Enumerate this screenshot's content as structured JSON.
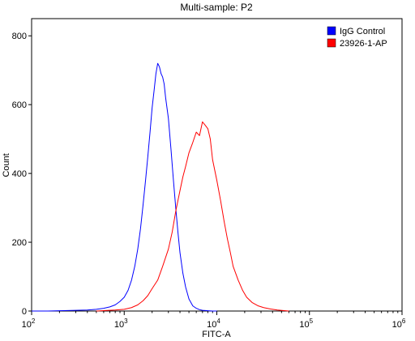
{
  "chart_data": {
    "type": "line",
    "title": "Multi-sample: P2",
    "xlabel": "FITC-A",
    "ylabel": "Count",
    "x_scale": "log10",
    "xlim": [
      100,
      1000000
    ],
    "ylim": [
      0,
      850
    ],
    "x_ticks": [
      {
        "value": 100,
        "base": "10",
        "exp": "2"
      },
      {
        "value": 1000,
        "base": "10",
        "exp": "3"
      },
      {
        "value": 10000,
        "base": "10",
        "exp": "4"
      },
      {
        "value": 100000,
        "base": "10",
        "exp": "5"
      },
      {
        "value": 1000000,
        "base": "10",
        "exp": "6"
      }
    ],
    "y_ticks": [
      "0",
      "200",
      "400",
      "600",
      "800"
    ],
    "grid": false,
    "legend_position": "top-right",
    "series": [
      {
        "name": "IgG Control",
        "color": "#0000ff",
        "x": [
          100,
          150,
          200,
          300,
          400,
          500,
          600,
          700,
          800,
          900,
          1000,
          1100,
          1200,
          1300,
          1400,
          1500,
          1600,
          1700,
          1800,
          1900,
          2000,
          2100,
          2200,
          2300,
          2400,
          2500,
          2600,
          2700,
          2800,
          3000,
          3200,
          3400,
          3600,
          3800,
          4000,
          4300,
          4600,
          5000,
          5500,
          6000,
          6500,
          7000,
          8000,
          9000,
          10000
        ],
        "y": [
          0,
          0,
          1,
          2,
          3,
          5,
          8,
          12,
          18,
          28,
          40,
          60,
          90,
          130,
          180,
          240,
          310,
          380,
          450,
          520,
          590,
          640,
          690,
          720,
          710,
          690,
          680,
          660,
          620,
          560,
          470,
          380,
          300,
          230,
          170,
          110,
          70,
          35,
          15,
          8,
          4,
          2,
          1,
          0,
          0
        ]
      },
      {
        "name": "23926-1-AP",
        "color": "#ff0000",
        "x": [
          500,
          800,
          1000,
          1200,
          1400,
          1600,
          1800,
          2000,
          2300,
          2600,
          3000,
          3300,
          3600,
          4000,
          4300,
          4600,
          5000,
          5500,
          6000,
          6500,
          7000,
          7500,
          8000,
          8500,
          9000,
          10000,
          11000,
          12000,
          13000,
          14000,
          15000,
          17000,
          19000,
          21000,
          24000,
          28000,
          32000,
          38000,
          45000,
          60000
        ],
        "y": [
          0,
          3,
          5,
          10,
          18,
          30,
          45,
          65,
          90,
          130,
          180,
          230,
          290,
          350,
          390,
          420,
          460,
          490,
          520,
          510,
          550,
          540,
          530,
          500,
          440,
          380,
          320,
          260,
          210,
          170,
          130,
          90,
          60,
          40,
          25,
          15,
          10,
          6,
          3,
          0
        ]
      }
    ]
  }
}
